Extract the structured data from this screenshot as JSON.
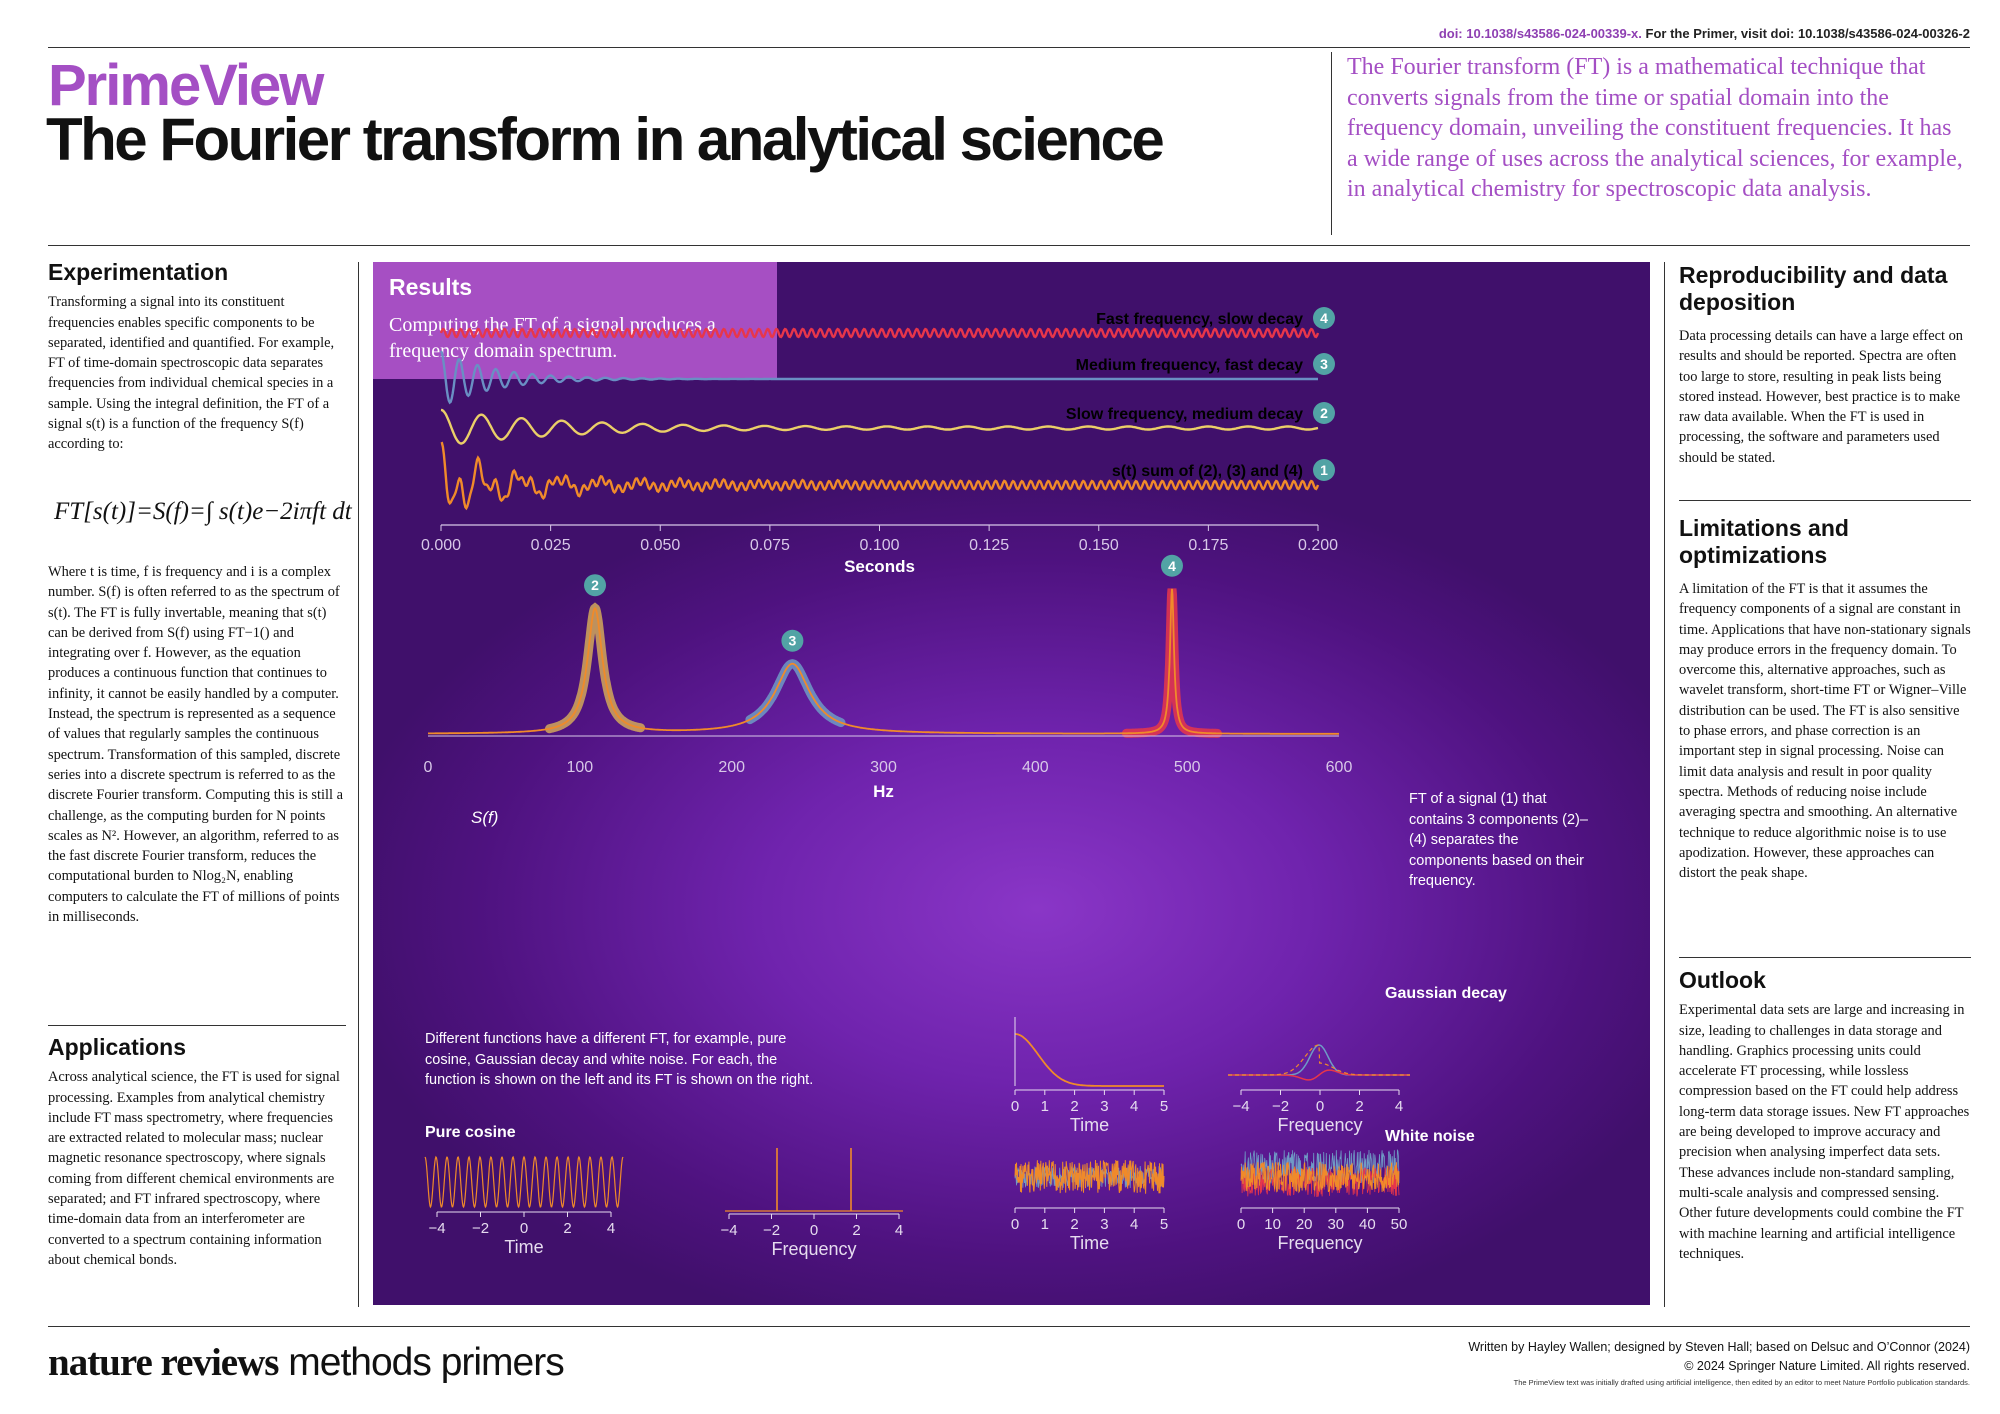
{
  "header": {
    "doi_line": "doi: 10.1038/s43586-024-00339-x.",
    "doi_primer": "For the Primer, visit doi: 10.1038/s43586-024-00326-2",
    "brand": "PrimeView",
    "title": "The Fourier transform in analytical science",
    "intro": "The Fourier transform (FT) is a mathematical technique that converts signals from the time or spatial domain into the frequency domain, unveiling the constituent frequencies. It has a wide range of uses across the analytical sciences, for example, in analytical chemistry for spectroscopic data analysis."
  },
  "experimentation": {
    "heading": "Experimentation",
    "p1": "Transforming a signal into its constituent frequencies enables specific components to be separated, identified and quantified. For example, FT of time-domain spectroscopic data separates frequencies from individual chemical species in a sample. Using the integral definition, the FT of a signal s(t) is a function of the frequency S(f) according to:",
    "formula": "FT[s(t)]=S(f)=∫ s(t)e−2iπft dt",
    "formula_limits": "+∞ / −∞",
    "p2": "Where t is time, f is frequency and i is a complex number. S(f) is often referred to as the spectrum of s(t). The FT is fully invertable, meaning that s(t) can be derived from S(f) using FT−1() and integrating over f. However, as the equation produces a continuous function that continues to infinity, it cannot be easily handled by a computer. Instead, the spectrum is represented as a sequence of values that regularly samples the continuous spectrum. Transformation of this sampled, discrete series into a discrete spectrum is referred to as the discrete Fourier transform. Computing this is still a challenge, as the computing burden for N points scales as N². However, an algorithm, referred to as the fast discrete Fourier transform, reduces the computational burden to Nlog₂N, enabling computers to calculate the FT of millions of points in milliseconds."
  },
  "applications": {
    "heading": "Applications",
    "p1": "Across analytical science, the FT is used for signal processing. Examples from analytical chemistry include FT mass spectrometry, where frequencies are extracted related to molecular mass; nuclear magnetic resonance spectroscopy, where signals coming from different chemical environments are separated; and FT infrared spectroscopy, where time-domain data from an interferometer are converted to a spectrum containing information about chemical bonds."
  },
  "results": {
    "heading": "Results",
    "sub": "Computing the FT of a signal produces a frequency domain spectrum.",
    "note_ft": "FT of a signal (1) that contains 3 components (2)–(4) separates the components based on their frequency.",
    "sf_label": "S(f)",
    "functions_note": "Different functions have a different FT, for example, pure cosine, Gaussian decay and white noise. For each, the function is shown on the left and its FT is shown on the right.",
    "pure_cosine": "Pure cosine",
    "gaussian_decay": "Gaussian decay",
    "white_noise": "White noise",
    "time_label": "Time",
    "freq_label": "Frequency"
  },
  "chart_data": [
    {
      "type": "line",
      "xlabel": "Seconds",
      "xlim": [
        0,
        0.2
      ],
      "xticks": [
        "0.000",
        "0.025",
        "0.050",
        "0.075",
        "0.100",
        "0.125",
        "0.150",
        "0.175",
        "0.200"
      ],
      "series": [
        {
          "name": "Fast frequency, slow decay",
          "num": "4",
          "color": "#e8364a"
        },
        {
          "name": "Medium frequency, fast decay",
          "num": "3",
          "color": "#6a8fc4"
        },
        {
          "name": "Slow frequency, medium decay",
          "num": "2",
          "color": "#ebcf68"
        },
        {
          "name": "s(t) sum of (2), (3) and (4)",
          "num": "1",
          "color": "#f08a2a"
        }
      ]
    },
    {
      "type": "line",
      "xlabel": "Hz",
      "xlim": [
        0,
        600
      ],
      "xticks": [
        "0",
        "100",
        "200",
        "300",
        "400",
        "500",
        "600"
      ],
      "peaks": [
        {
          "num": "2",
          "center_hz": 110,
          "color": "#d2a85a"
        },
        {
          "num": "3",
          "center_hz": 240,
          "color": "#6f9bc6"
        },
        {
          "num": "4",
          "center_hz": 490,
          "color": "#e8364a"
        }
      ]
    }
  ],
  "small_axes": {
    "sym_ticks": [
      "−4",
      "−2",
      "0",
      "2",
      "4"
    ],
    "time_ticks": [
      "0",
      "1",
      "2",
      "3",
      "4",
      "5"
    ],
    "noise_freq_ticks": [
      "0",
      "10",
      "20",
      "30",
      "40",
      "50"
    ]
  },
  "reproducibility": {
    "heading": "Reproducibility and data deposition",
    "p1": "Data processing details can have a large effect on results and should be reported. Spectra are often too large to store, resulting in peak lists being stored instead. However, best practice is to make raw data available. When the FT is used in processing, the software and parameters used should be stated."
  },
  "limitations": {
    "heading": "Limitations and optimizations",
    "p1": "A limitation of the FT is that it assumes the frequency components of a signal are constant in time. Applications that have non-stationary signals may produce errors in the frequency domain. To overcome this, alternative approaches, such as wavelet transform, short-time FT or Wigner–Ville distribution can be used. The FT is also sensitive to phase errors, and phase correction is an important step in signal processing. Noise can limit data analysis and result in poor quality spectra. Methods of reducing noise include averaging spectra and smoothing. An alternative technique to reduce algorithmic noise is to use apodization. However, these approaches can distort the peak shape."
  },
  "outlook": {
    "heading": "Outlook",
    "p1": "Experimental data sets are large and increasing in size, leading to challenges in data storage and handling. Graphics processing units could accelerate FT processing, while lossless compression based on the FT could help address long-term data storage issues. New FT approaches are being developed to improve accuracy and precision when analysing imperfect data sets. These advances include non-standard sampling, multi-scale analysis and compressed sensing. Other future developments could combine the FT with machine learning and artificial intelligence techniques."
  },
  "footer": {
    "brand_bold": "nature reviews",
    "brand_light": " methods primers",
    "credit1": "Written by Hayley Wallen; designed by Steven Hall; based on Delsuc and O’Connor (2024)",
    "credit2": "© 2024 Springer Nature Limited. All rights reserved.",
    "credit3": "The PrimeView text was initially drafted using artificial intelligence, then edited by an editor to meet Nature Portfolio publication standards."
  },
  "colors": {
    "purple_accent": "#a44fc4",
    "panel_dark": "#4e127f",
    "teal_badge": "#52a3a5"
  }
}
